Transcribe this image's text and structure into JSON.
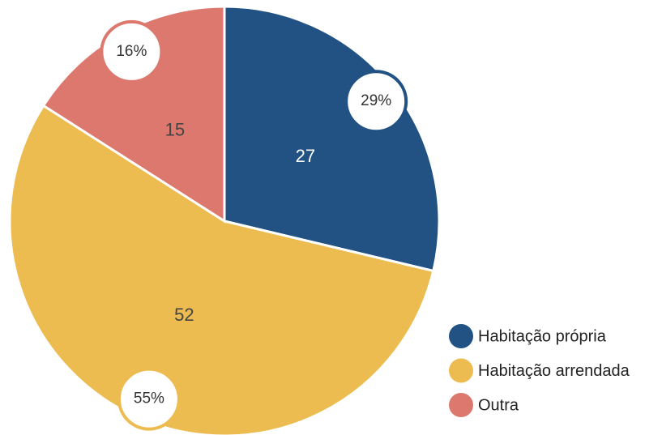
{
  "chart_data": {
    "type": "pie",
    "categories": [
      "Habitação própria",
      "Habitação arrendada",
      "Outra"
    ],
    "values": [
      27,
      52,
      15
    ],
    "percent_labels": [
      "29%",
      "55%",
      "16%"
    ],
    "colors": [
      "#215283",
      "#ecbc50",
      "#dc786e"
    ],
    "legend": "bottom-right"
  }
}
